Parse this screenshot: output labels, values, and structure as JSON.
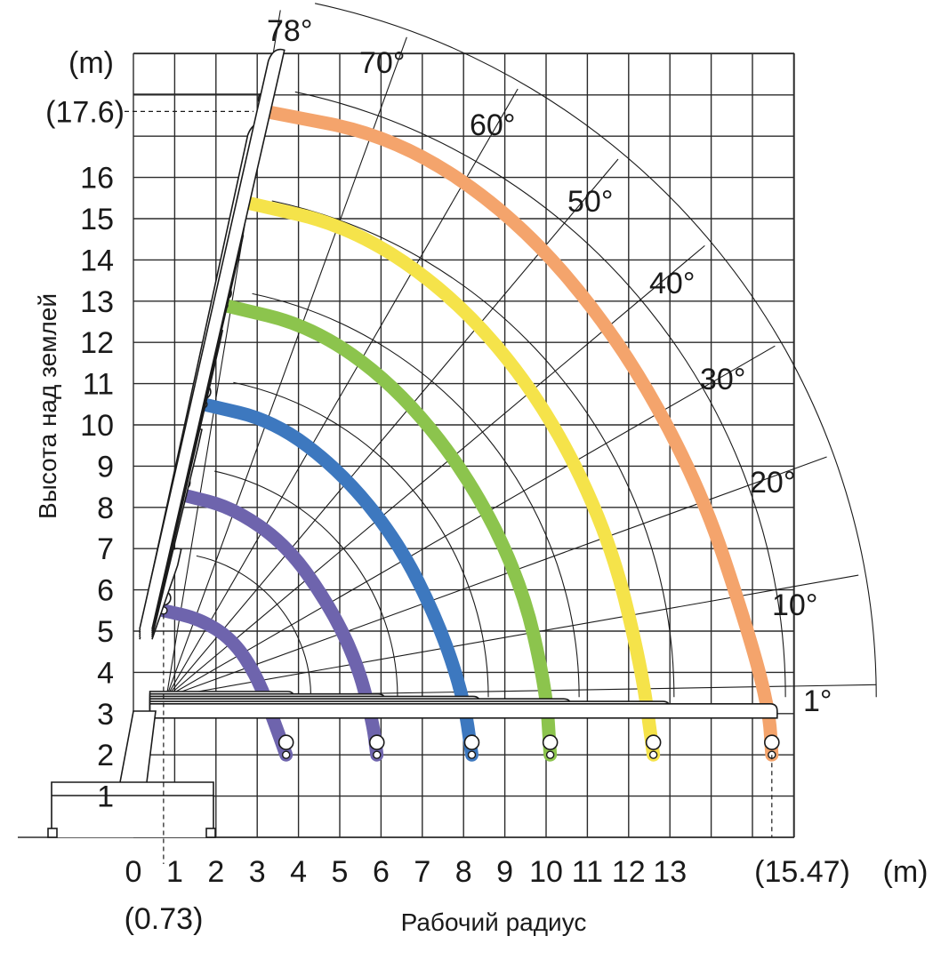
{
  "chart_data": {
    "type": "line",
    "title": "",
    "xlabel": "Рабочий радиус",
    "ylabel": "Высота над землей",
    "x_unit": "(m)",
    "y_unit": "(m)",
    "xlim": [
      0,
      16
    ],
    "ylim": [
      0,
      19
    ],
    "x_ticks": [
      "0",
      "1",
      "2",
      "3",
      "4",
      "5",
      "6",
      "7",
      "8",
      "9",
      "10",
      "11",
      "12",
      "13",
      "(15.47)"
    ],
    "x_tick_values": [
      0,
      1,
      2,
      3,
      4,
      5,
      6,
      7,
      8,
      9,
      10,
      11,
      12,
      13,
      15.47
    ],
    "x_extra_label": "(0.73)",
    "y_ticks": [
      "1",
      "2",
      "3",
      "4",
      "5",
      "6",
      "7",
      "8",
      "9",
      "10",
      "11",
      "12",
      "13",
      "14",
      "15",
      "16",
      "(17.6)"
    ],
    "y_tick_values": [
      1,
      2,
      3,
      4,
      5,
      6,
      7,
      8,
      9,
      10,
      11,
      12,
      13,
      14,
      15,
      16,
      17.6
    ],
    "angle_labels": [
      "78°",
      "70°",
      "60°",
      "50°",
      "40°",
      "30°",
      "20°",
      "10°",
      "1°"
    ],
    "angles": [
      78,
      70,
      60,
      50,
      40,
      30,
      20,
      10,
      1
    ],
    "max_height": 17.6,
    "max_radius": 15.47,
    "min_radius": 0.73,
    "series": [
      {
        "color": "#6e64ad",
        "points": [
          [
            0.73,
            5.5
          ],
          [
            1.6,
            5.3
          ],
          [
            2.4,
            4.8
          ],
          [
            3.0,
            3.9
          ],
          [
            3.45,
            2.7
          ],
          [
            3.7,
            2.0
          ]
        ]
      },
      {
        "color": "#6e64ad",
        "points": [
          [
            1.2,
            8.3
          ],
          [
            2.4,
            8.0
          ],
          [
            3.7,
            7.1
          ],
          [
            4.7,
            5.7
          ],
          [
            5.4,
            4.3
          ],
          [
            5.8,
            2.8
          ],
          [
            5.9,
            2.0
          ]
        ]
      },
      {
        "color": "#3d78bf",
        "points": [
          [
            1.7,
            10.5
          ],
          [
            3.4,
            10.1
          ],
          [
            5.0,
            8.9
          ],
          [
            6.4,
            7.2
          ],
          [
            7.4,
            5.2
          ],
          [
            8.0,
            3.4
          ],
          [
            8.2,
            2.0
          ]
        ]
      },
      {
        "color": "#8cc44d",
        "points": [
          [
            2.2,
            12.9
          ],
          [
            4.3,
            12.4
          ],
          [
            6.3,
            11.0
          ],
          [
            8.1,
            8.8
          ],
          [
            9.4,
            6.2
          ],
          [
            10.0,
            3.6
          ],
          [
            10.1,
            2.0
          ]
        ]
      },
      {
        "color": "#f5e34a",
        "points": [
          [
            2.7,
            15.4
          ],
          [
            5.3,
            14.8
          ],
          [
            7.8,
            13.1
          ],
          [
            9.9,
            10.6
          ],
          [
            11.5,
            7.4
          ],
          [
            12.3,
            4.2
          ],
          [
            12.6,
            2.0
          ]
        ]
      },
      {
        "color": "#f4a46c",
        "points": [
          [
            3.2,
            17.6
          ],
          [
            6.3,
            17.0
          ],
          [
            9.2,
            15.1
          ],
          [
            11.7,
            12.2
          ],
          [
            13.7,
            8.6
          ],
          [
            14.9,
            5.0
          ],
          [
            15.4,
            3.1
          ],
          [
            15.47,
            2.0
          ]
        ]
      }
    ]
  }
}
